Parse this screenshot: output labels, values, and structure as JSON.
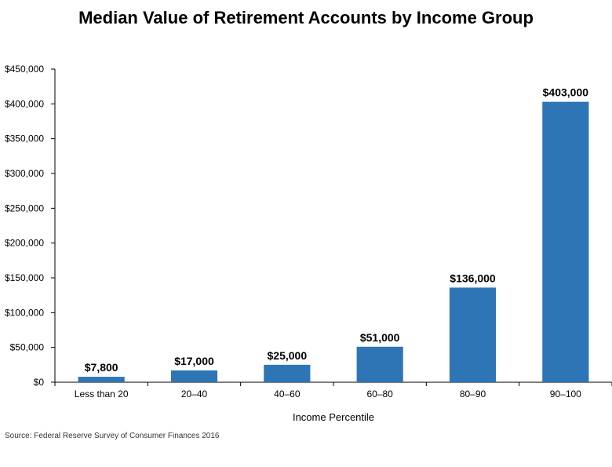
{
  "chart_data": {
    "type": "bar",
    "title": "Median Value of Retirement Accounts by Income Group",
    "xlabel": "Income Percentile",
    "ylabel": "",
    "categories": [
      "Less than 20",
      "20–40",
      "40–60",
      "60–80",
      "80–90",
      "90–100"
    ],
    "values": [
      7800,
      17000,
      25000,
      51000,
      136000,
      403000
    ],
    "data_labels": [
      "$7,800",
      "$17,000",
      "$25,000",
      "$51,000",
      "$136,000",
      "$403,000"
    ],
    "ylim": [
      0,
      450000
    ],
    "yticks": [
      0,
      50000,
      100000,
      150000,
      200000,
      250000,
      300000,
      350000,
      400000,
      450000
    ],
    "ytick_labels": [
      "$0",
      "$50,000",
      "$100,000",
      "$150,000",
      "$200,000",
      "$250,000",
      "$300,000",
      "$350,000",
      "$400,000",
      "$450,000"
    ],
    "bar_color": "#2E75B6",
    "grid": false,
    "source": "Source: Federal Reserve Survey of Consumer Finances 2016"
  }
}
